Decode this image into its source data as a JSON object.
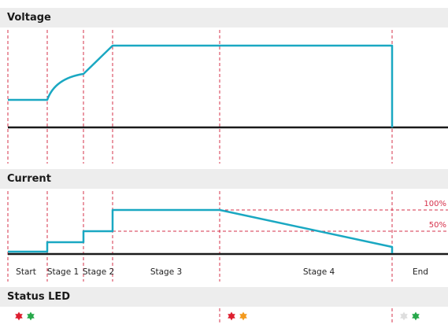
{
  "sections": {
    "voltage_title": "Voltage",
    "current_title": "Current",
    "status_title": "Status LED"
  },
  "stages": [
    "Start",
    "Stage 1",
    "Stage 2",
    "Stage 3",
    "Stage 4",
    "End"
  ],
  "current_levels": {
    "full": "100%",
    "half": "50%"
  },
  "colors": {
    "signal": "#1aa8c2",
    "boundary": "#d6304a",
    "axis": "#1a1a1a",
    "band": "#ededed",
    "led_red": "#dd1e2f",
    "led_green": "#27a84a",
    "led_orange": "#f39a1e",
    "led_off": "#dedede"
  },
  "status_leds": [
    {
      "phase": "start",
      "leds": [
        "red",
        "green"
      ]
    },
    {
      "phase": "stage-4",
      "leds": [
        "red",
        "orange"
      ]
    },
    {
      "phase": "end",
      "leds": [
        "off",
        "green"
      ]
    }
  ]
}
